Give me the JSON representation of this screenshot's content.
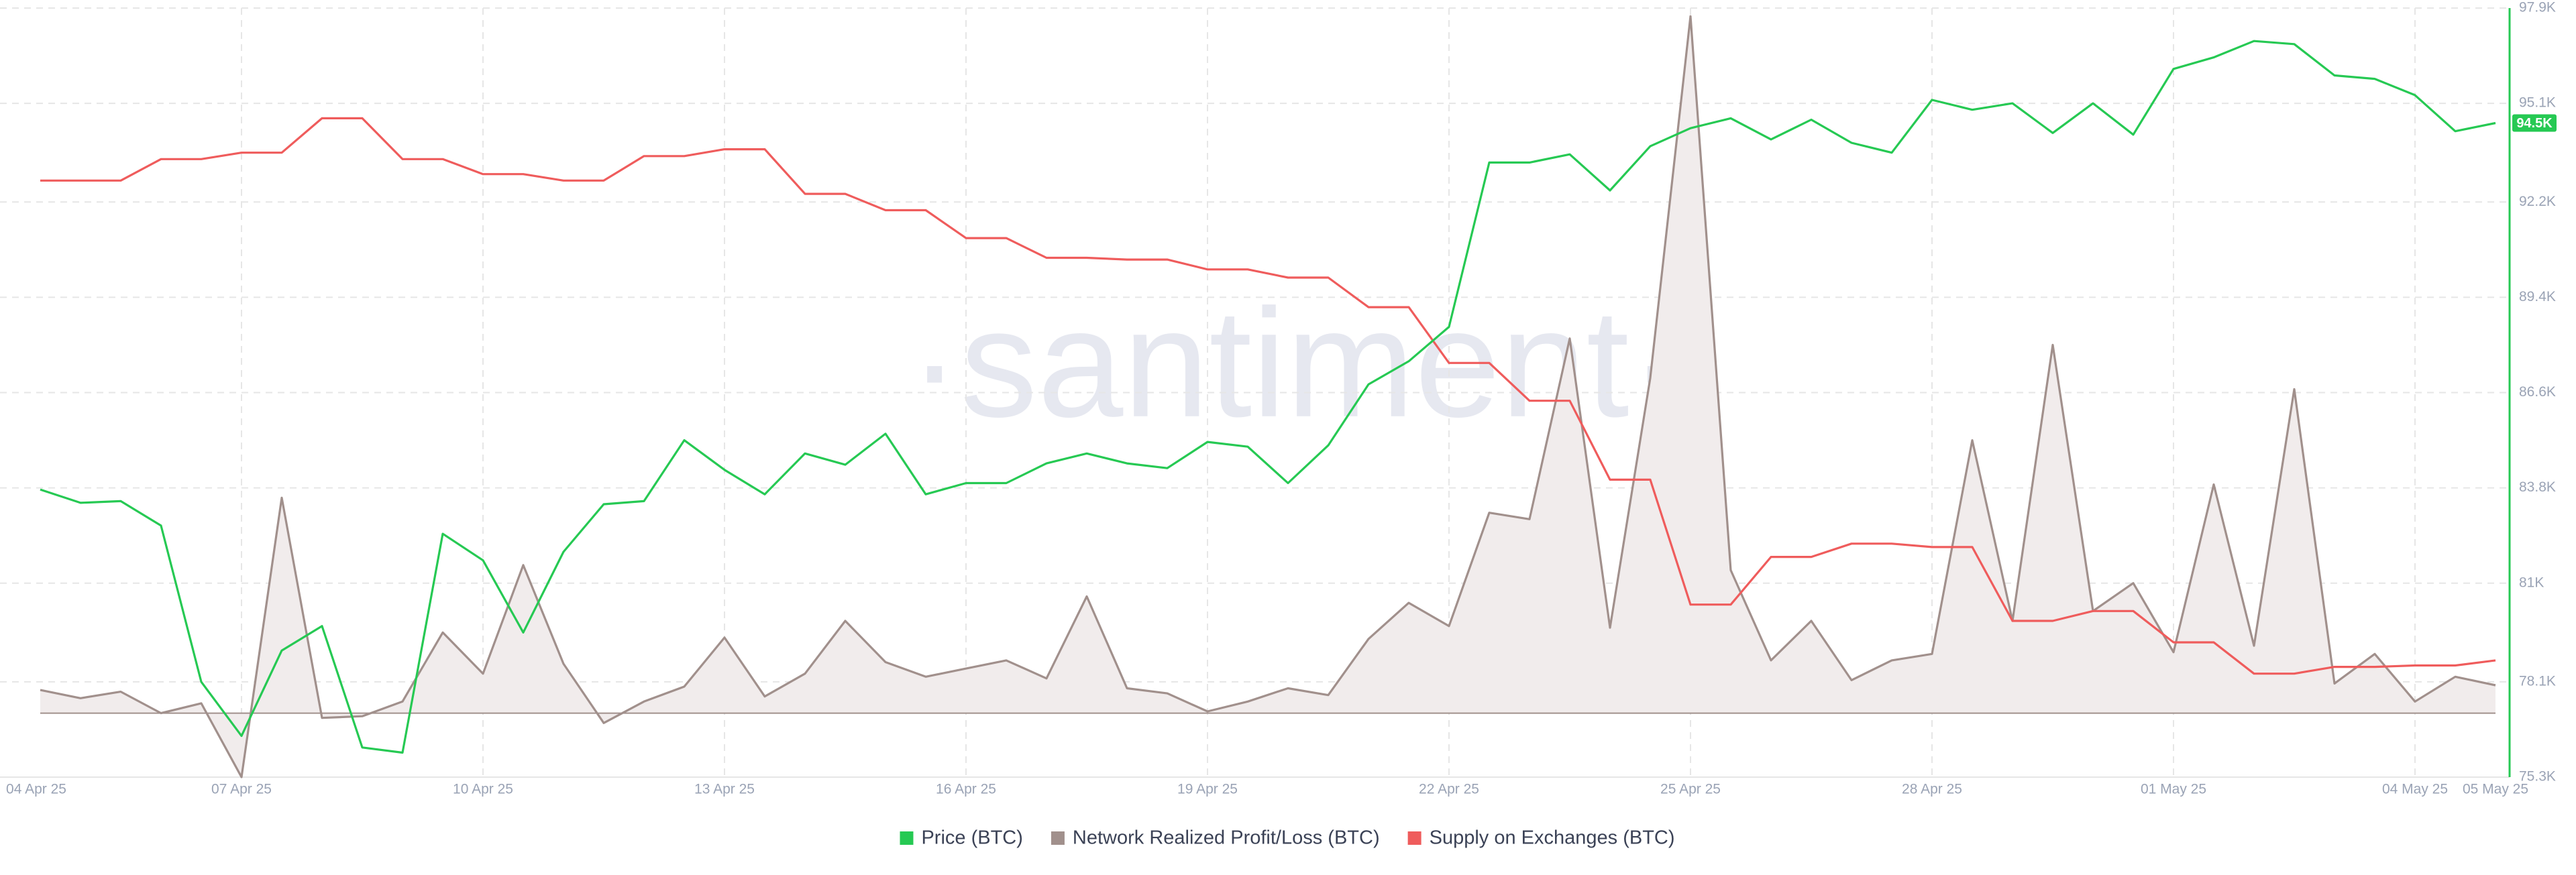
{
  "chart_data": {
    "type": "line",
    "watermark": "·santiment·",
    "categories": [
      "04 Apr 25",
      null,
      null,
      null,
      null,
      "07 Apr 25",
      null,
      null,
      null,
      null,
      null,
      "10 Apr 25",
      null,
      null,
      null,
      null,
      null,
      "13 Apr 25",
      null,
      null,
      null,
      null,
      null,
      "16 Apr 25",
      null,
      null,
      null,
      null,
      null,
      "19 Apr 25",
      null,
      null,
      null,
      null,
      null,
      "22 Apr 25",
      null,
      null,
      null,
      null,
      null,
      "25 Apr 25",
      null,
      null,
      null,
      null,
      null,
      "28 Apr 25",
      null,
      null,
      null,
      null,
      null,
      "01 May 25",
      null,
      null,
      null,
      null,
      null,
      "04 May 25",
      null,
      "05 May 25"
    ],
    "series": [
      {
        "name": "Price (BTC)",
        "color": "#26c953",
        "last_value_label": "94.5K",
        "values": [
          83.75,
          83.36,
          83.41,
          82.69,
          78.1,
          76.51,
          79.02,
          79.74,
          76.17,
          76.02,
          82.45,
          81.67,
          79.55,
          81.92,
          83.32,
          83.41,
          85.2,
          84.33,
          83.61,
          84.81,
          84.48,
          85.39,
          83.61,
          83.94,
          83.94,
          84.52,
          84.81,
          84.52,
          84.38,
          85.15,
          85.01,
          83.94,
          85.05,
          86.84,
          87.52,
          88.53,
          93.36,
          93.36,
          93.6,
          92.54,
          93.84,
          94.37,
          94.66,
          94.04,
          94.62,
          93.94,
          93.65,
          95.2,
          94.91,
          95.1,
          94.23,
          95.1,
          94.18,
          96.11,
          96.45,
          96.93,
          96.84,
          95.92,
          95.82,
          95.34,
          94.28,
          94.52
        ]
      },
      {
        "name": "Network Realized Profit/Loss (BTC)",
        "color": "#a1908c",
        "fill": "#f1ecec",
        "zero_line": 77.18,
        "values": [
          77.86,
          77.62,
          77.81,
          77.18,
          77.47,
          75.3,
          83.51,
          77.04,
          77.09,
          77.52,
          79.55,
          78.34,
          81.53,
          78.63,
          76.89,
          77.52,
          77.96,
          79.4,
          77.67,
          78.34,
          79.89,
          78.68,
          78.25,
          78.49,
          78.73,
          78.2,
          80.61,
          77.91,
          77.76,
          77.23,
          77.52,
          77.91,
          77.71,
          79.36,
          80.42,
          79.74,
          83.07,
          82.88,
          88.19,
          79.69,
          87.03,
          97.66,
          81.38,
          78.73,
          79.89,
          78.15,
          78.73,
          78.92,
          85.2,
          79.89,
          88.0,
          80.18,
          81.0,
          78.97,
          83.9,
          79.16,
          86.7,
          78.05,
          78.92,
          77.52,
          78.25,
          78.0
        ]
      },
      {
        "name": "Supply on Exchanges (BTC)",
        "color": "#ef5c5c",
        "values": [
          92.83,
          92.83,
          92.83,
          93.46,
          93.46,
          93.65,
          93.65,
          94.66,
          94.66,
          93.46,
          93.46,
          93.02,
          93.02,
          92.83,
          92.83,
          93.55,
          93.55,
          93.75,
          93.75,
          92.44,
          92.44,
          91.96,
          91.96,
          91.14,
          91.14,
          90.56,
          90.56,
          90.51,
          90.51,
          90.22,
          90.22,
          89.98,
          89.98,
          89.11,
          89.11,
          87.47,
          87.47,
          86.36,
          86.36,
          84.04,
          84.04,
          80.37,
          80.37,
          81.77,
          81.77,
          82.16,
          82.16,
          82.06,
          82.06,
          79.89,
          79.89,
          80.18,
          80.18,
          79.26,
          79.26,
          78.34,
          78.34,
          78.54,
          78.54,
          78.58,
          78.58,
          78.73
        ]
      }
    ],
    "ylim": [
      75.3,
      97.9
    ],
    "yticks": [
      {
        "value": 97.9,
        "label": "97.9K"
      },
      {
        "value": 95.1,
        "label": "95.1K"
      },
      {
        "value": 92.2,
        "label": "92.2K"
      },
      {
        "value": 89.4,
        "label": "89.4K"
      },
      {
        "value": 86.6,
        "label": "86.6K"
      },
      {
        "value": 83.8,
        "label": "83.8K"
      },
      {
        "value": 81,
        "label": "81K"
      },
      {
        "value": 78.1,
        "label": "78.1K"
      },
      {
        "value": 75.3,
        "label": "75.3K"
      }
    ],
    "grid": true,
    "legend": "bottom",
    "axis_color": "#26c953"
  }
}
